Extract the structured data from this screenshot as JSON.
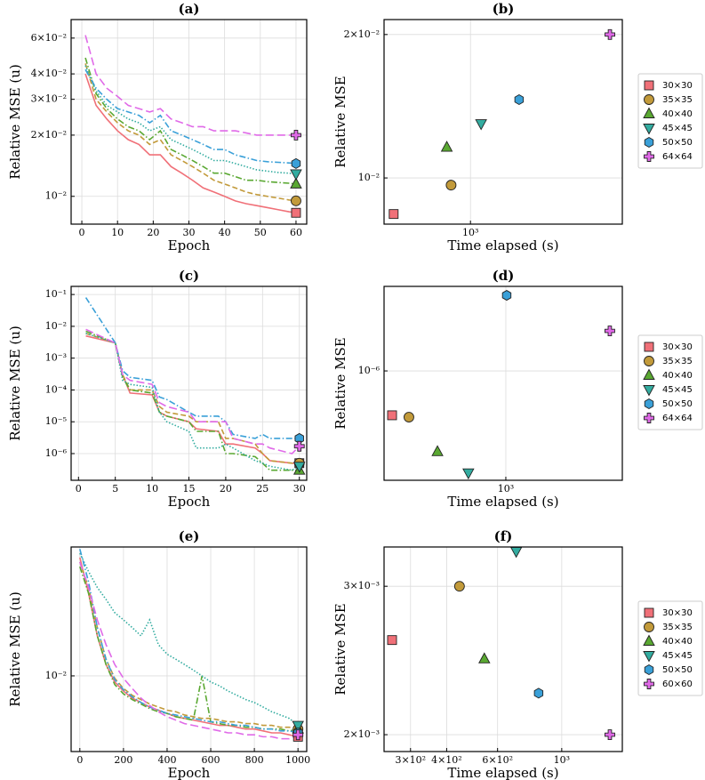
{
  "chart_data": [
    {
      "type": "line",
      "title": "(a)",
      "x_label": "Epoch",
      "y_label": "Relative MSE (u)",
      "xscale": "linear",
      "yscale": "log",
      "grid": true,
      "xlim": [
        -3,
        63
      ],
      "ylim": [
        0.0073,
        0.074
      ],
      "xticks": [
        0,
        10,
        20,
        30,
        40,
        50,
        60
      ],
      "yticks": [
        {
          "value": 0.06,
          "label": "6×10⁻²"
        },
        {
          "value": 0.04,
          "label": "4×10⁻²"
        },
        {
          "value": 0.03,
          "label": "3×10⁻²"
        },
        {
          "value": 0.02,
          "label": "2×10⁻²"
        },
        {
          "value": 0.01,
          "label": "10⁻²"
        }
      ],
      "x": [
        1,
        4,
        7,
        10,
        13,
        16,
        19,
        22,
        25,
        28,
        31,
        34,
        37,
        40,
        43,
        46,
        49,
        52,
        55,
        58,
        60
      ],
      "series": [
        {
          "color": "#f07078",
          "dash": "solid",
          "marker": "square",
          "values": [
            0.04,
            0.028,
            0.024,
            0.021,
            0.019,
            0.018,
            0.016,
            0.016,
            0.014,
            0.013,
            0.012,
            0.011,
            0.0105,
            0.01,
            0.0095,
            0.0092,
            0.009,
            0.0088,
            0.0086,
            0.0084,
            0.0083
          ]
        },
        {
          "color": "#c29a3a",
          "dash": "dashed",
          "marker": "circle",
          "values": [
            0.045,
            0.03,
            0.026,
            0.023,
            0.021,
            0.02,
            0.018,
            0.019,
            0.016,
            0.015,
            0.014,
            0.013,
            0.012,
            0.0115,
            0.011,
            0.0105,
            0.0102,
            0.01,
            0.0098,
            0.0096,
            0.0095
          ]
        },
        {
          "color": "#5aa832",
          "dash": "dashdot",
          "marker": "triangle-up",
          "values": [
            0.048,
            0.032,
            0.027,
            0.024,
            0.022,
            0.021,
            0.019,
            0.021,
            0.017,
            0.016,
            0.015,
            0.014,
            0.013,
            0.013,
            0.0125,
            0.012,
            0.012,
            0.0118,
            0.0117,
            0.0116,
            0.0115
          ]
        },
        {
          "color": "#33aca0",
          "dash": "dotted",
          "marker": "triangle-down",
          "values": [
            0.044,
            0.033,
            0.028,
            0.026,
            0.024,
            0.023,
            0.021,
            0.022,
            0.019,
            0.018,
            0.017,
            0.016,
            0.015,
            0.015,
            0.0145,
            0.014,
            0.0135,
            0.0133,
            0.0131,
            0.013,
            0.0129
          ]
        },
        {
          "color": "#3aa0d8",
          "dash": "dashdot",
          "marker": "hexagon",
          "values": [
            0.042,
            0.034,
            0.03,
            0.027,
            0.026,
            0.025,
            0.023,
            0.025,
            0.021,
            0.02,
            0.019,
            0.018,
            0.017,
            0.017,
            0.016,
            0.0155,
            0.015,
            0.0148,
            0.0147,
            0.0146,
            0.0145
          ]
        },
        {
          "color": "#e06ae8",
          "dash": "longdash",
          "marker": "plus",
          "values": [
            0.062,
            0.04,
            0.034,
            0.031,
            0.028,
            0.027,
            0.026,
            0.027,
            0.024,
            0.023,
            0.022,
            0.022,
            0.021,
            0.021,
            0.021,
            0.0205,
            0.02,
            0.02,
            0.02,
            0.02,
            0.02
          ]
        }
      ]
    },
    {
      "type": "scatter",
      "title": "(b)",
      "x_label": "Time elapsed (s)",
      "y_label": "Relative MSE",
      "xscale": "log",
      "yscale": "log",
      "grid": true,
      "legend": "right",
      "xlim": [
        500,
        3380
      ],
      "ylim": [
        0.008,
        0.0215
      ],
      "xticks": [
        {
          "value": 1000,
          "label": "10³"
        }
      ],
      "yticks": [
        {
          "value": 0.01,
          "label": "10⁻²"
        },
        {
          "value": 0.02,
          "label": "2×10⁻²"
        }
      ],
      "series": [
        {
          "name": "30×30",
          "color": "#f07078",
          "marker": "square",
          "x": [
            540
          ],
          "values": [
            0.0084
          ]
        },
        {
          "name": "35×35",
          "color": "#c29a3a",
          "marker": "circle",
          "x": [
            856
          ],
          "values": [
            0.00966
          ]
        },
        {
          "name": "40×40",
          "color": "#5aa832",
          "marker": "triangle-up",
          "x": [
            827
          ],
          "values": [
            0.0116
          ]
        },
        {
          "name": "45×45",
          "color": "#33aca0",
          "marker": "triangle-down",
          "x": [
            1089
          ],
          "values": [
            0.013
          ]
        },
        {
          "name": "50×50",
          "color": "#3aa0d8",
          "marker": "hexagon",
          "x": [
            1477
          ],
          "values": [
            0.0146
          ]
        },
        {
          "name": "64×64",
          "color": "#e06ae8",
          "marker": "plus",
          "x": [
            3060
          ],
          "values": [
            0.02
          ]
        }
      ]
    },
    {
      "type": "line",
      "title": "(c)",
      "x_label": "Epoch",
      "y_label": "Relative MSE (u)",
      "xscale": "linear",
      "yscale": "log",
      "grid": true,
      "xlim": [
        -1,
        31
      ],
      "ylim": [
        1.45e-07,
        0.18
      ],
      "xticks": [
        0,
        5,
        10,
        15,
        20,
        25,
        30
      ],
      "yticks": [
        {
          "value": 0.1,
          "label": "10⁻¹"
        },
        {
          "value": 0.01,
          "label": "10⁻²"
        },
        {
          "value": 0.001,
          "label": "10⁻³"
        },
        {
          "value": 0.0001,
          "label": "10⁻⁴"
        },
        {
          "value": 1e-05,
          "label": "10⁻⁵"
        },
        {
          "value": 1e-06,
          "label": "10⁻⁶"
        }
      ],
      "x": [
        1,
        5,
        6,
        7,
        10,
        11,
        12,
        15,
        16,
        19,
        20,
        21,
        24,
        25,
        26,
        29,
        30
      ],
      "series": [
        {
          "color": "#f07078",
          "dash": "solid",
          "marker": "square",
          "values": [
            0.005,
            0.003,
            0.0003,
            8e-05,
            7e-05,
            2e-05,
            1.5e-05,
            1e-05,
            6e-06,
            5e-06,
            2e-06,
            2e-06,
            1.5e-06,
            1e-06,
            6e-07,
            5e-07,
            5e-07
          ]
        },
        {
          "color": "#c29a3a",
          "dash": "dashed",
          "marker": "circle",
          "values": [
            0.006,
            0.003,
            0.0003,
            0.0001,
            0.0001,
            3e-05,
            2e-05,
            1.5e-05,
            1e-05,
            1e-05,
            3e-06,
            3e-06,
            2e-06,
            1e-06,
            6e-07,
            5e-07,
            5e-07
          ]
        },
        {
          "color": "#5aa832",
          "dash": "dashdot",
          "marker": "triangle-up",
          "values": [
            0.007,
            0.003,
            0.00025,
            0.0001,
            8e-05,
            2e-05,
            1.5e-05,
            1e-05,
            5e-06,
            5e-06,
            1e-06,
            1e-06,
            8e-07,
            5e-07,
            3e-07,
            3e-07,
            3e-07
          ]
        },
        {
          "color": "#33aca0",
          "dash": "dotted",
          "marker": "triangle-down",
          "values": [
            0.006,
            0.003,
            0.0002,
            0.00015,
            0.00012,
            2e-05,
            1e-05,
            5e-06,
            1.5e-06,
            1.5e-06,
            2e-06,
            1.5e-06,
            6e-07,
            5e-07,
            4e-07,
            3e-07,
            4e-07
          ]
        },
        {
          "color": "#3aa0d8",
          "dash": "dashdot",
          "marker": "hexagon",
          "values": [
            0.08,
            0.003,
            0.0004,
            0.00025,
            0.0002,
            6e-05,
            5e-05,
            2e-05,
            1.5e-05,
            1.5e-05,
            1e-05,
            4e-06,
            3e-06,
            4e-06,
            3e-06,
            3e-06,
            3e-06
          ]
        },
        {
          "color": "#e06ae8",
          "dash": "longdash",
          "marker": "plus",
          "values": [
            0.008,
            0.003,
            0.0003,
            0.0002,
            0.00015,
            4e-05,
            3e-05,
            2e-05,
            1e-05,
            1e-05,
            1e-05,
            3e-06,
            2e-06,
            2e-06,
            1.5e-06,
            1e-06,
            1.7e-06
          ]
        }
      ]
    },
    {
      "type": "scatter",
      "title": "(d)",
      "x_label": "Time elapsed (s)",
      "y_label": "Relative MSE",
      "xscale": "log",
      "yscale": "log",
      "grid": true,
      "legend": "right",
      "xlim": [
        379,
        2530
      ],
      "ylim": [
        4.45e-07,
        1.87e-06
      ],
      "xticks": [
        {
          "value": 1000,
          "label": "10³"
        }
      ],
      "yticks": [
        {
          "value": 1e-06,
          "label": "10⁻⁶"
        }
      ],
      "series": [
        {
          "name": "30×30",
          "color": "#f07078",
          "marker": "square",
          "x": [
            404
          ],
          "values": [
            7.2e-07
          ]
        },
        {
          "name": "35×35",
          "color": "#c29a3a",
          "marker": "circle",
          "x": [
            462
          ],
          "values": [
            7.1e-07
          ]
        },
        {
          "name": "40×40",
          "color": "#5aa832",
          "marker": "triangle-up",
          "x": [
            580
          ],
          "values": [
            5.5e-07
          ]
        },
        {
          "name": "45×45",
          "color": "#33aca0",
          "marker": "triangle-down",
          "x": [
            742
          ],
          "values": [
            4.7e-07
          ]
        },
        {
          "name": "50×50",
          "color": "#3aa0d8",
          "marker": "hexagon",
          "x": [
            1007
          ],
          "values": [
            1.75e-06
          ]
        },
        {
          "name": "64×64",
          "color": "#e06ae8",
          "marker": "plus",
          "x": [
            2290
          ],
          "values": [
            1.345e-06
          ]
        }
      ]
    },
    {
      "type": "line",
      "title": "(e)",
      "x_label": "Epoch",
      "y_label": "Relative MSE (u)",
      "xscale": "linear",
      "yscale": "log",
      "grid": true,
      "xlim": [
        -40,
        1040
      ],
      "ylim": [
        0.0053,
        0.0295
      ],
      "xticks": [
        0,
        200,
        400,
        600,
        800,
        1000
      ],
      "yticks": [
        {
          "value": 0.01,
          "label": "10⁻²"
        }
      ],
      "x": [
        0,
        40,
        80,
        120,
        160,
        200,
        240,
        280,
        320,
        360,
        400,
        440,
        480,
        520,
        560,
        600,
        640,
        680,
        720,
        760,
        800,
        840,
        880,
        920,
        960,
        1000
      ],
      "series": [
        {
          "color": "#f07078",
          "dash": "solid",
          "marker": "square",
          "values": [
            0.027,
            0.02,
            0.014,
            0.011,
            0.0095,
            0.0088,
            0.0083,
            0.008,
            0.0077,
            0.0075,
            0.0073,
            0.0071,
            0.007,
            0.0069,
            0.0068,
            0.0067,
            0.0066,
            0.0066,
            0.0065,
            0.0064,
            0.0064,
            0.0063,
            0.0062,
            0.0062,
            0.0061,
            0.006
          ]
        },
        {
          "color": "#c29a3a",
          "dash": "dashed",
          "marker": "circle",
          "values": [
            0.026,
            0.021,
            0.015,
            0.0115,
            0.0098,
            0.009,
            0.0085,
            0.0082,
            0.0079,
            0.0077,
            0.0075,
            0.0074,
            0.0072,
            0.0071,
            0.007,
            0.007,
            0.0069,
            0.0068,
            0.0068,
            0.0067,
            0.0067,
            0.0066,
            0.0066,
            0.0065,
            0.0065,
            0.0064
          ]
        },
        {
          "color": "#5aa832",
          "dash": "dashdot",
          "marker": "triangle-up",
          "values": [
            0.025,
            0.02,
            0.014,
            0.011,
            0.0093,
            0.0086,
            0.0082,
            0.0079,
            0.0076,
            0.0074,
            0.0073,
            0.0071,
            0.007,
            0.0069,
            0.01,
            0.0068,
            0.0067,
            0.0066,
            0.0066,
            0.0065,
            0.0065,
            0.0064,
            0.0064,
            0.0064,
            0.0063,
            0.0064
          ]
        },
        {
          "color": "#33aca0",
          "dash": "dotted",
          "marker": "triangle-down",
          "values": [
            0.028,
            0.024,
            0.021,
            0.019,
            0.017,
            0.016,
            0.015,
            0.014,
            0.016,
            0.013,
            0.012,
            0.0115,
            0.011,
            0.0105,
            0.01,
            0.0095,
            0.0092,
            0.0088,
            0.0085,
            0.0082,
            0.008,
            0.0077,
            0.0074,
            0.0072,
            0.007,
            0.0066
          ]
        },
        {
          "color": "#3aa0d8",
          "dash": "dashdot",
          "marker": "hexagon",
          "values": [
            0.029,
            0.022,
            0.015,
            0.0115,
            0.0097,
            0.0089,
            0.0084,
            0.008,
            0.0077,
            0.0075,
            0.0073,
            0.0072,
            0.0071,
            0.007,
            0.0069,
            0.0068,
            0.0068,
            0.0067,
            0.0066,
            0.0066,
            0.0065,
            0.0064,
            0.0064,
            0.0063,
            0.0063,
            0.0062
          ]
        },
        {
          "color": "#e06ae8",
          "dash": "longdash",
          "marker": "plus",
          "values": [
            0.026,
            0.021,
            0.016,
            0.013,
            0.011,
            0.0098,
            0.009,
            0.0083,
            0.0078,
            0.0074,
            0.0071,
            0.0069,
            0.0067,
            0.0066,
            0.0065,
            0.0064,
            0.0063,
            0.0062,
            0.0062,
            0.0061,
            0.0061,
            0.006,
            0.006,
            0.0059,
            0.0059,
            0.0061
          ]
        }
      ]
    },
    {
      "type": "scatter",
      "title": "(f)",
      "x_label": "Time elapsed (s)",
      "y_label": "Relative MSE",
      "xscale": "log",
      "yscale": "log",
      "grid": true,
      "legend": "right",
      "xlim": [
        243,
        1620
      ],
      "ylim": [
        0.00191,
        0.00334
      ],
      "xticks": [
        {
          "value": 300,
          "label": "3×10²"
        },
        {
          "value": 400,
          "label": "4×10²"
        },
        {
          "value": 600,
          "label": "6×10²"
        },
        {
          "value": 1000,
          "label": "10³"
        }
      ],
      "yticks": [
        {
          "value": 0.002,
          "label": "2×10⁻³"
        },
        {
          "value": 0.003,
          "label": "3×10⁻³"
        }
      ],
      "series": [
        {
          "name": "30×30",
          "color": "#f07078",
          "marker": "square",
          "x": [
            259
          ],
          "values": [
            0.00259
          ]
        },
        {
          "name": "35×35",
          "color": "#c29a3a",
          "marker": "circle",
          "x": [
            443
          ],
          "values": [
            0.003
          ]
        },
        {
          "name": "40×40",
          "color": "#5aa832",
          "marker": "triangle-up",
          "x": [
            540
          ],
          "values": [
            0.00246
          ]
        },
        {
          "name": "45×45",
          "color": "#33aca0",
          "marker": "triangle-down",
          "x": [
            696
          ],
          "values": [
            0.0033
          ]
        },
        {
          "name": "50×50",
          "color": "#3aa0d8",
          "marker": "hexagon",
          "x": [
            832
          ],
          "values": [
            0.00224
          ]
        },
        {
          "name": "60×60",
          "color": "#e06ae8",
          "marker": "plus",
          "x": [
            1467
          ],
          "values": [
            0.002
          ]
        }
      ]
    }
  ]
}
